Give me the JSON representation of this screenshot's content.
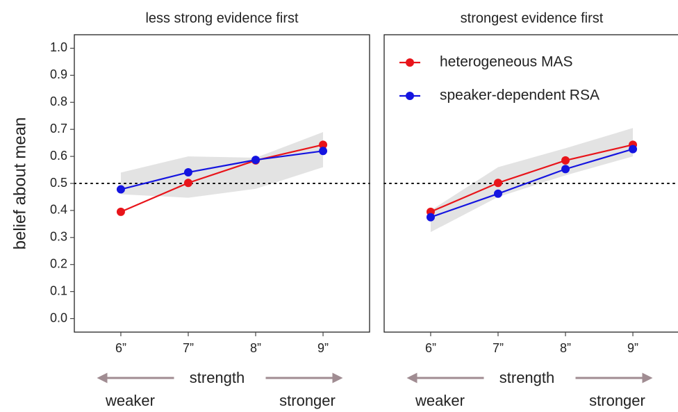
{
  "chart_data": [
    {
      "type": "line",
      "title": "less strong evidence first",
      "y_label": "belief about mean",
      "x_label": "strength",
      "x_annotations": {
        "left": "weaker",
        "right": "stronger"
      },
      "categories": [
        "6”",
        "7”",
        "8”",
        "9”"
      ],
      "series": [
        {
          "name": "heterogeneous MAS",
          "color": "#e8141a",
          "values": [
            0.395,
            0.502,
            0.585,
            0.643
          ]
        },
        {
          "name": "speaker-dependent RSA",
          "color": "#1414e0",
          "values": [
            0.478,
            0.541,
            0.587,
            0.62
          ]
        }
      ],
      "band": {
        "color": "#e3e3e3",
        "lower": [
          0.46,
          0.447,
          0.48,
          0.56
        ],
        "upper": [
          0.54,
          0.6,
          0.595,
          0.69
        ]
      },
      "hline": 0.5,
      "ylim": [
        -0.05,
        1.05
      ],
      "yticks": [
        {
          "value": 0,
          "label": "0.0"
        },
        0.1,
        0.2,
        0.3,
        0.4,
        0.5,
        0.6,
        0.7,
        0.8,
        0.9,
        {
          "value": 1,
          "label": "1.0"
        }
      ]
    },
    {
      "type": "line",
      "title": "strongest evidence first",
      "x_label": "strength",
      "x_annotations": {
        "left": "weaker",
        "right": "stronger"
      },
      "categories": [
        "6”",
        "7”",
        "8”",
        "9”"
      ],
      "series": [
        {
          "name": "heterogeneous MAS",
          "color": "#e8141a",
          "values": [
            0.395,
            0.502,
            0.585,
            0.643
          ]
        },
        {
          "name": "speaker-dependent RSA",
          "color": "#1414e0",
          "values": [
            0.375,
            0.462,
            0.553,
            0.627
          ]
        }
      ],
      "band": {
        "color": "#e3e3e3",
        "lower": [
          0.32,
          0.45,
          0.53,
          0.6
        ],
        "upper": [
          0.4,
          0.56,
          0.63,
          0.705
        ]
      },
      "hline": 0.5,
      "ylim": [
        -0.05,
        1.05
      ],
      "legend": "top-left"
    }
  ]
}
